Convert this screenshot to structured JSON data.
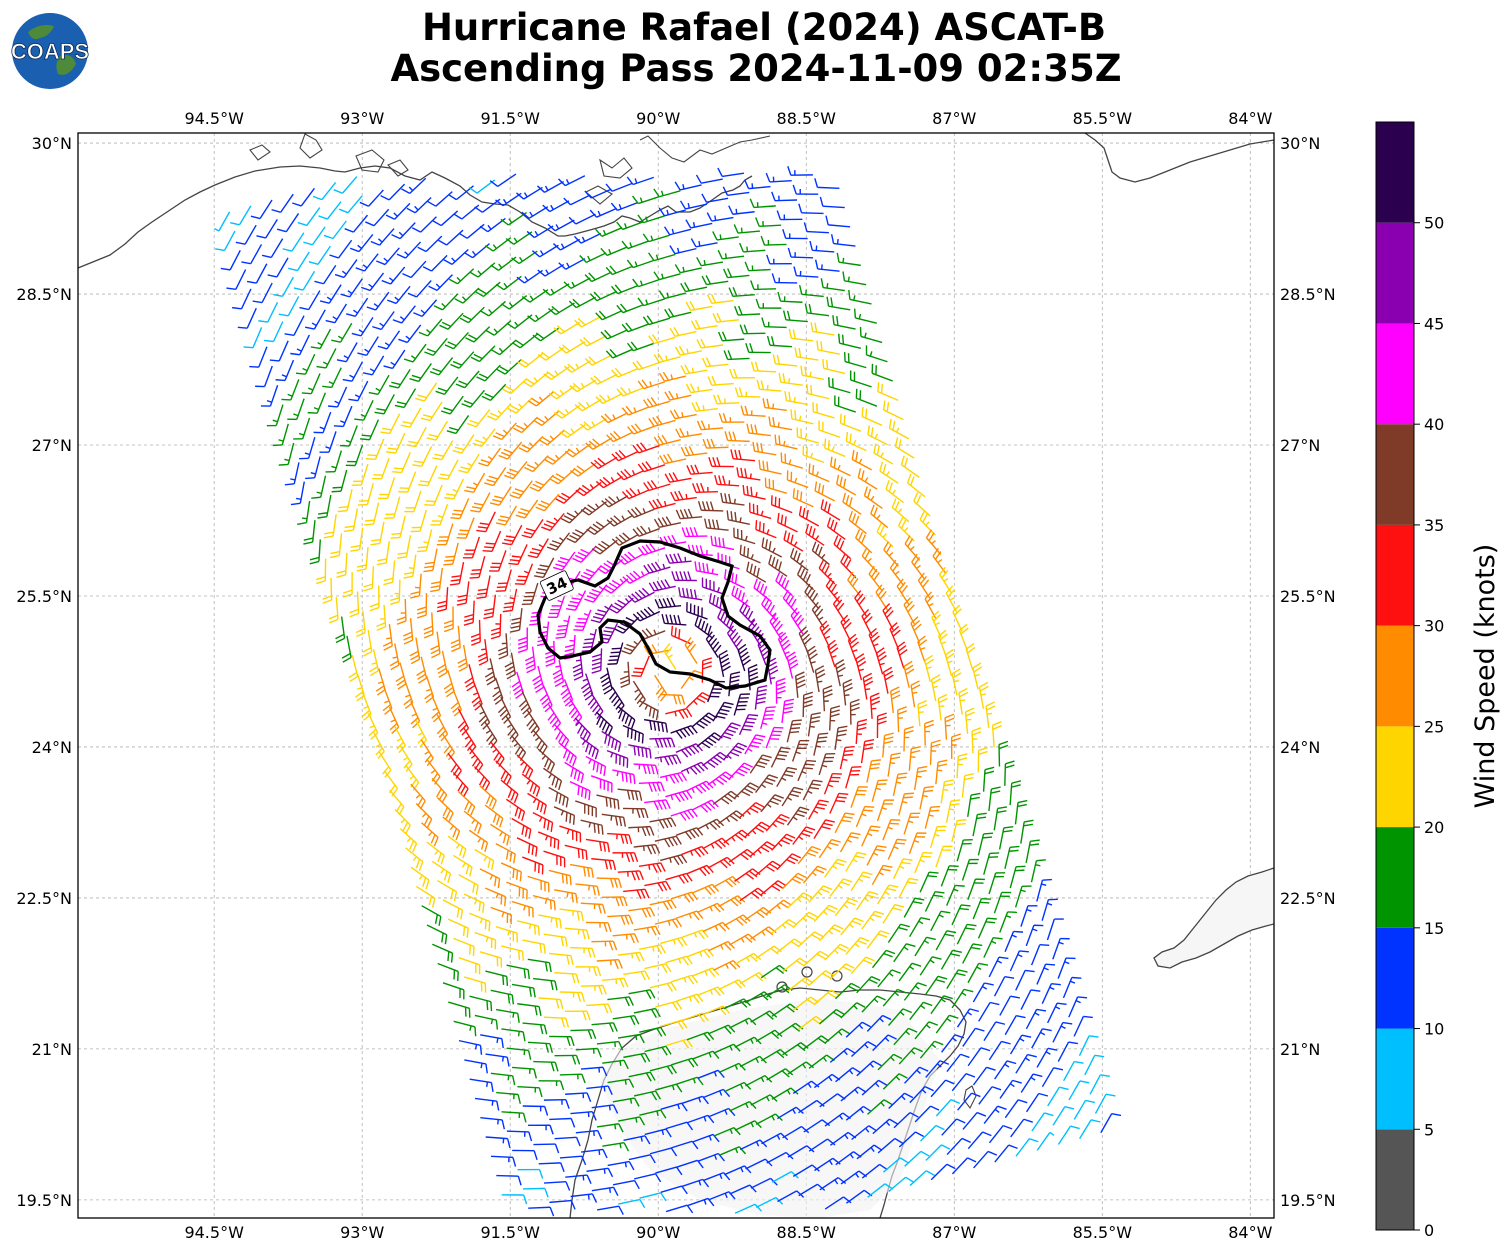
{
  "title": {
    "line1": "Hurricane Rafael (2024) ASCAT-B",
    "line2": "Ascending Pass 2024-11-09 02:35Z"
  },
  "logo": {
    "text": "COAPS",
    "icon": "globe-logo"
  },
  "map": {
    "type": "wind-barb-map",
    "lon_range": [
      -95.88,
      -83.76
    ],
    "lat_range": [
      19.32,
      30.1
    ],
    "lon_ticks": [
      {
        "value": -94.5,
        "label": "94.5°W"
      },
      {
        "value": -93,
        "label": "93°W"
      },
      {
        "value": -91.5,
        "label": "91.5°W"
      },
      {
        "value": -90,
        "label": "90°W"
      },
      {
        "value": -88.5,
        "label": "88.5°W"
      },
      {
        "value": -87,
        "label": "87°W"
      },
      {
        "value": -85.5,
        "label": "85.5°W"
      },
      {
        "value": -84,
        "label": "84°W"
      }
    ],
    "lat_ticks": [
      {
        "value": 30,
        "label": "30°N"
      },
      {
        "value": 28.5,
        "label": "28.5°N"
      },
      {
        "value": 27,
        "label": "27°N"
      },
      {
        "value": 25.5,
        "label": "25.5°N"
      },
      {
        "value": 24,
        "label": "24°N"
      },
      {
        "value": 22.5,
        "label": "22.5°N"
      },
      {
        "value": 21,
        "label": "21°N"
      },
      {
        "value": 19.5,
        "label": "19.5°N"
      }
    ],
    "grid": true,
    "storm_center": {
      "lon": -89.9,
      "lat": 24.75
    },
    "contour": {
      "level": 34,
      "label": "34",
      "color": "#000000"
    },
    "colors": {
      "coastline": "#444444",
      "grid": "#b0b0b0"
    }
  },
  "colorbar": {
    "label": "Wind Speed (knots)",
    "bins": [
      {
        "min": 0,
        "max": 5,
        "color": "#555555"
      },
      {
        "min": 5,
        "max": 10,
        "color": "#00bfff"
      },
      {
        "min": 10,
        "max": 15,
        "color": "#0033ff"
      },
      {
        "min": 15,
        "max": 20,
        "color": "#009400"
      },
      {
        "min": 20,
        "max": 25,
        "color": "#ffd500"
      },
      {
        "min": 25,
        "max": 30,
        "color": "#ff8c00"
      },
      {
        "min": 30,
        "max": 35,
        "color": "#ff1010"
      },
      {
        "min": 35,
        "max": 40,
        "color": "#7f3a28"
      },
      {
        "min": 40,
        "max": 45,
        "color": "#ff00ff"
      },
      {
        "min": 45,
        "max": 50,
        "color": "#8a00b0"
      },
      {
        "min": 50,
        "max": 55,
        "color": "#2b004f"
      }
    ],
    "tick_labels": [
      "0",
      "5",
      "10",
      "15",
      "20",
      "25",
      "30",
      "35",
      "40",
      "45",
      "50"
    ]
  }
}
